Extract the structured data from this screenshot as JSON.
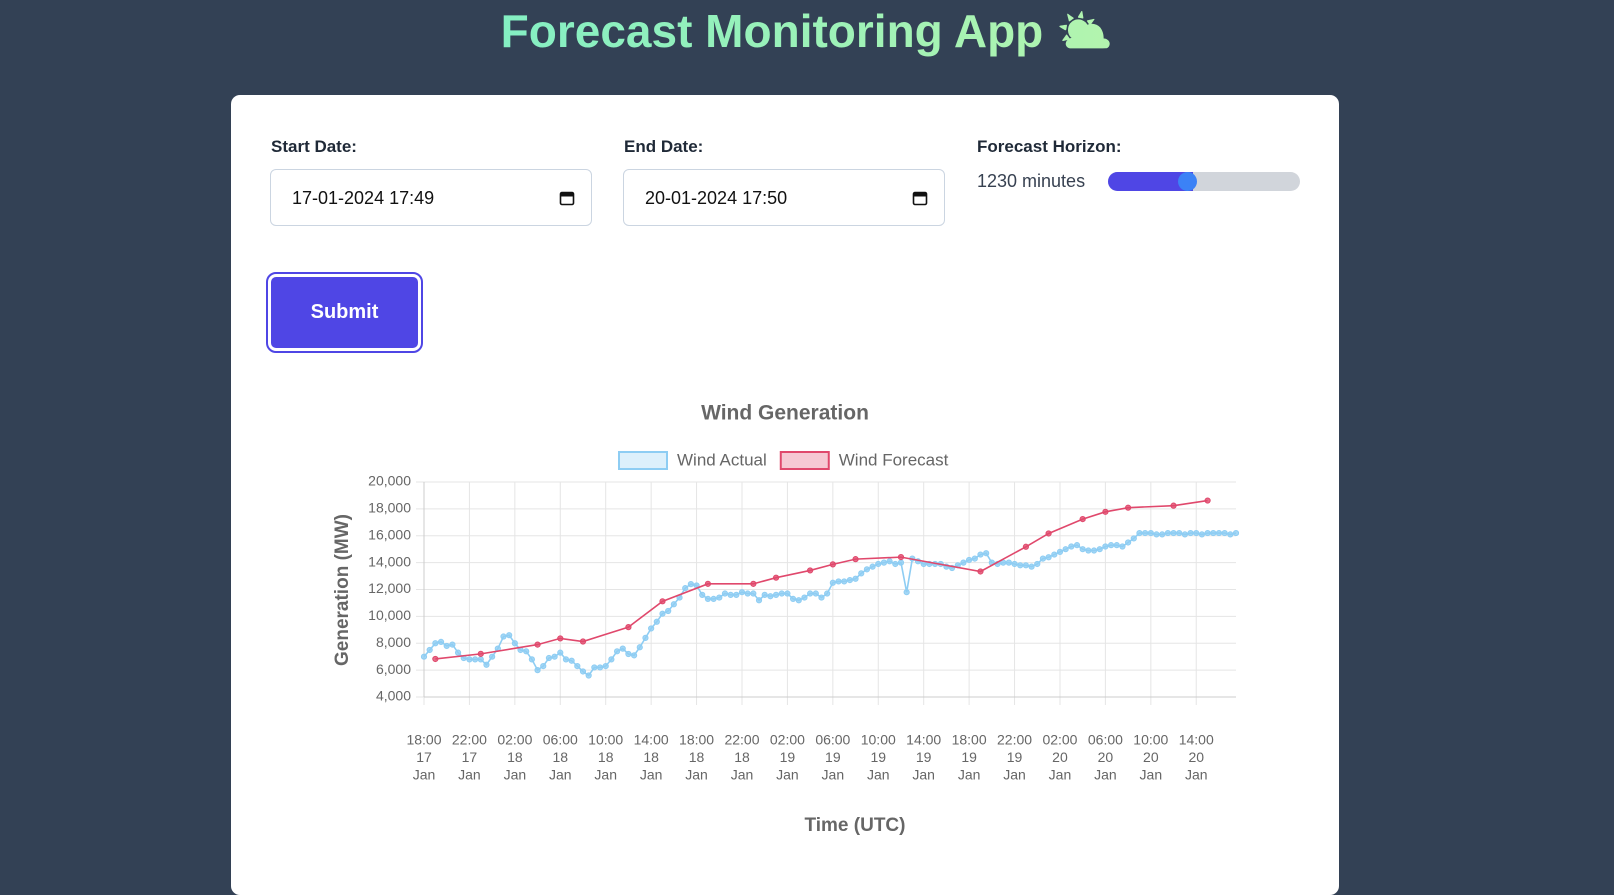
{
  "header": {
    "title": "Forecast Monitoring App ⛅"
  },
  "form": {
    "start": {
      "label": "Start Date:",
      "value": "17-01-2024 17:49"
    },
    "end": {
      "label": "End Date:",
      "value": "20-01-2024 17:50"
    },
    "horizon": {
      "label": "Forecast Horizon:",
      "value": "1230 minutes"
    },
    "submit": "Submit"
  },
  "chart_data": {
    "type": "line",
    "title": "Wind Generation",
    "xlabel": "Time (UTC)",
    "ylabel": "Generation (MW)",
    "xlim": [
      "17 Jan 18:00",
      "20 Jan 17:30"
    ],
    "xticks": [
      {
        "value": "17 Jan 18:00",
        "label": [
          "18:00",
          "17",
          "Jan"
        ]
      },
      {
        "value": "17 Jan 22:00",
        "label": [
          "22:00",
          "17",
          "Jan"
        ]
      },
      {
        "value": "18 Jan 02:00",
        "label": [
          "02:00",
          "18",
          "Jan"
        ]
      },
      {
        "value": "18 Jan 06:00",
        "label": [
          "06:00",
          "18",
          "Jan"
        ]
      },
      {
        "value": "18 Jan 10:00",
        "label": [
          "10:00",
          "18",
          "Jan"
        ]
      },
      {
        "value": "18 Jan 14:00",
        "label": [
          "14:00",
          "18",
          "Jan"
        ]
      },
      {
        "value": "18 Jan 18:00",
        "label": [
          "18:00",
          "18",
          "Jan"
        ]
      },
      {
        "value": "18 Jan 22:00",
        "label": [
          "22:00",
          "18",
          "Jan"
        ]
      },
      {
        "value": "19 Jan 02:00",
        "label": [
          "02:00",
          "19",
          "Jan"
        ]
      },
      {
        "value": "19 Jan 06:00",
        "label": [
          "06:00",
          "19",
          "Jan"
        ]
      },
      {
        "value": "19 Jan 10:00",
        "label": [
          "10:00",
          "19",
          "Jan"
        ]
      },
      {
        "value": "19 Jan 14:00",
        "label": [
          "14:00",
          "19",
          "Jan"
        ]
      },
      {
        "value": "19 Jan 18:00",
        "label": [
          "18:00",
          "19",
          "Jan"
        ]
      },
      {
        "value": "19 Jan 22:00",
        "label": [
          "22:00",
          "19",
          "Jan"
        ]
      },
      {
        "value": "20 Jan 02:00",
        "label": [
          "02:00",
          "20",
          "Jan"
        ]
      },
      {
        "value": "20 Jan 06:00",
        "label": [
          "06:00",
          "20",
          "Jan"
        ]
      },
      {
        "value": "20 Jan 10:00",
        "label": [
          "10:00",
          "20",
          "Jan"
        ]
      },
      {
        "value": "20 Jan 14:00",
        "label": [
          "14:00",
          "20",
          "Jan"
        ]
      }
    ],
    "ylim": [
      4000,
      20000
    ],
    "yticks": [
      {
        "value": 4000,
        "label": "4,000"
      },
      {
        "value": 6000,
        "label": "6,000"
      },
      {
        "value": 8000,
        "label": "8,000"
      },
      {
        "value": 10000,
        "label": "10,000"
      },
      {
        "value": 12000,
        "label": "12,000"
      },
      {
        "value": 14000,
        "label": "14,000"
      },
      {
        "value": 16000,
        "label": "16,000"
      },
      {
        "value": 18000,
        "label": "18,000"
      },
      {
        "value": 20000,
        "label": "20,000"
      }
    ],
    "grid": true,
    "legend": "top",
    "series": [
      {
        "name": "Wind Actual",
        "color": "#8ecdf3",
        "x": [
          "17 Jan 18:00",
          "17 Jan 18:30",
          "17 Jan 19:00",
          "17 Jan 19:30",
          "17 Jan 20:00",
          "17 Jan 20:30",
          "17 Jan 21:00",
          "17 Jan 21:30",
          "17 Jan 22:00",
          "17 Jan 22:30",
          "17 Jan 23:00",
          "17 Jan 23:30",
          "18 Jan 00:00",
          "18 Jan 00:30",
          "18 Jan 01:00",
          "18 Jan 01:30",
          "18 Jan 02:00",
          "18 Jan 02:30",
          "18 Jan 03:00",
          "18 Jan 03:30",
          "18 Jan 04:00",
          "18 Jan 04:30",
          "18 Jan 05:00",
          "18 Jan 05:30",
          "18 Jan 06:00",
          "18 Jan 06:30",
          "18 Jan 07:00",
          "18 Jan 07:30",
          "18 Jan 08:00",
          "18 Jan 08:30",
          "18 Jan 09:00",
          "18 Jan 09:30",
          "18 Jan 10:00",
          "18 Jan 10:30",
          "18 Jan 11:00",
          "18 Jan 11:30",
          "18 Jan 12:00",
          "18 Jan 12:30",
          "18 Jan 13:00",
          "18 Jan 13:30",
          "18 Jan 14:00",
          "18 Jan 14:30",
          "18 Jan 15:00",
          "18 Jan 15:30",
          "18 Jan 16:00",
          "18 Jan 16:30",
          "18 Jan 17:00",
          "18 Jan 17:30",
          "18 Jan 18:00",
          "18 Jan 18:30",
          "18 Jan 19:00",
          "18 Jan 19:30",
          "18 Jan 20:00",
          "18 Jan 20:30",
          "18 Jan 21:00",
          "18 Jan 21:30",
          "18 Jan 22:00",
          "18 Jan 22:30",
          "18 Jan 23:00",
          "18 Jan 23:30",
          "19 Jan 00:00",
          "19 Jan 00:30",
          "19 Jan 01:00",
          "19 Jan 01:30",
          "19 Jan 02:00",
          "19 Jan 02:30",
          "19 Jan 03:00",
          "19 Jan 03:30",
          "19 Jan 04:00",
          "19 Jan 04:30",
          "19 Jan 05:00",
          "19 Jan 05:30",
          "19 Jan 06:00",
          "19 Jan 06:30",
          "19 Jan 07:00",
          "19 Jan 07:30",
          "19 Jan 08:00",
          "19 Jan 08:30",
          "19 Jan 09:00",
          "19 Jan 09:30",
          "19 Jan 10:00",
          "19 Jan 10:30",
          "19 Jan 11:00",
          "19 Jan 11:30",
          "19 Jan 12:00",
          "19 Jan 12:30",
          "19 Jan 13:00",
          "19 Jan 13:30",
          "19 Jan 14:00",
          "19 Jan 14:30",
          "19 Jan 15:00",
          "19 Jan 15:30",
          "19 Jan 16:00",
          "19 Jan 16:30",
          "19 Jan 17:00",
          "19 Jan 17:30",
          "19 Jan 18:00",
          "19 Jan 18:30",
          "19 Jan 19:00",
          "19 Jan 19:30",
          "19 Jan 20:00",
          "19 Jan 20:30",
          "19 Jan 21:00",
          "19 Jan 21:30",
          "19 Jan 22:00",
          "19 Jan 22:30",
          "19 Jan 23:00",
          "19 Jan 23:30",
          "20 Jan 00:00",
          "20 Jan 00:30",
          "20 Jan 01:00",
          "20 Jan 01:30",
          "20 Jan 02:00",
          "20 Jan 02:30",
          "20 Jan 03:00",
          "20 Jan 03:30",
          "20 Jan 04:00",
          "20 Jan 04:30",
          "20 Jan 05:00",
          "20 Jan 05:30",
          "20 Jan 06:00",
          "20 Jan 06:30",
          "20 Jan 07:00",
          "20 Jan 07:30",
          "20 Jan 08:00",
          "20 Jan 08:30",
          "20 Jan 09:00",
          "20 Jan 09:30",
          "20 Jan 10:00",
          "20 Jan 10:30",
          "20 Jan 11:00",
          "20 Jan 11:30",
          "20 Jan 12:00",
          "20 Jan 12:30",
          "20 Jan 13:00",
          "20 Jan 13:30",
          "20 Jan 14:00",
          "20 Jan 14:30",
          "20 Jan 15:00",
          "20 Jan 15:30",
          "20 Jan 16:00",
          "20 Jan 16:30",
          "20 Jan 17:00",
          "20 Jan 17:30"
        ],
        "values": [
          7000,
          7500,
          8000,
          8100,
          7800,
          7900,
          7300,
          6900,
          6800,
          6800,
          6800,
          6400,
          7000,
          7600,
          8500,
          8600,
          8000,
          7500,
          7400,
          6800,
          6000,
          6300,
          6900,
          7000,
          7300,
          6800,
          6700,
          6300,
          5900,
          5600,
          6200,
          6200,
          6300,
          6800,
          7400,
          7600,
          7200,
          7100,
          7700,
          8400,
          9100,
          9600,
          10200,
          10400,
          10900,
          11400,
          12100,
          12400,
          12300,
          11600,
          11300,
          11300,
          11400,
          11700,
          11600,
          11600,
          11800,
          11700,
          11700,
          11200,
          11600,
          11500,
          11600,
          11700,
          11700,
          11300,
          11200,
          11400,
          11700,
          11700,
          11400,
          11700,
          12500,
          12600,
          12600,
          12700,
          12800,
          13200,
          13500,
          13700,
          13900,
          14000,
          14100,
          13900,
          14000,
          11800,
          14300,
          14100,
          13900,
          13900,
          13900,
          13900,
          13700,
          13600,
          13800,
          14000,
          14200,
          14300,
          14600,
          14700,
          14000,
          13900,
          14000,
          14000,
          13900,
          13800,
          13800,
          13700,
          13900,
          14300,
          14400,
          14600,
          14800,
          15000,
          15200,
          15300,
          15000,
          14900,
          14900,
          15000,
          15200,
          15300,
          15300,
          15200,
          15500,
          15800,
          16200,
          16200,
          16200,
          16100,
          16100,
          16200,
          16200,
          16200,
          16100,
          16200,
          16200,
          16100,
          16200,
          16200,
          16200,
          16200,
          16100,
          16200
        ]
      },
      {
        "name": "Wind Forecast",
        "color": "#e0486c",
        "x": [
          "17 Jan 19:00",
          "17 Jan 23:00",
          "18 Jan 04:00",
          "18 Jan 06:00",
          "18 Jan 08:00",
          "18 Jan 12:00",
          "18 Jan 15:00",
          "18 Jan 19:00",
          "18 Jan 23:00",
          "19 Jan 01:00",
          "19 Jan 04:00",
          "19 Jan 06:00",
          "19 Jan 08:00",
          "19 Jan 12:00",
          "19 Jan 19:00",
          "19 Jan 23:00",
          "20 Jan 01:00",
          "20 Jan 04:00",
          "20 Jan 06:00",
          "20 Jan 08:00",
          "20 Jan 12:00",
          "20 Jan 15:00"
        ],
        "values": [
          6830,
          7210,
          7900,
          8360,
          8130,
          9200,
          11120,
          12420,
          12420,
          12880,
          13420,
          13870,
          14260,
          14410,
          13340,
          15180,
          16170,
          17240,
          17780,
          18090,
          18240,
          18620
        ]
      }
    ]
  }
}
